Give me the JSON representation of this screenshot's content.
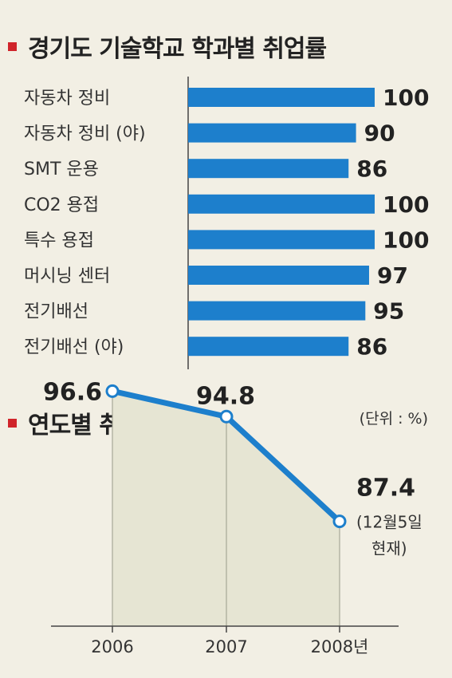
{
  "colors": {
    "marker": "#d0242a",
    "bar": "#1d7fcc",
    "line": "#1d7fcc",
    "area": "#e6e5d3",
    "axis": "#444444"
  },
  "section1": {
    "title": "경기도 기술학교 학과별 취업률"
  },
  "section2": {
    "title": "연도별 취업률",
    "unit": "(단위 : %)"
  },
  "chart_data": [
    {
      "type": "bar",
      "orientation": "horizontal",
      "title": "경기도 기술학교 학과별 취업률",
      "categories": [
        "자동차 정비",
        "자동차 정비 (야)",
        "SMT 운용",
        "CO2 용접",
        "특수 용접",
        "머시닝 센터",
        "전기배선",
        "전기배선 (야)"
      ],
      "values": [
        100,
        90,
        86,
        100,
        100,
        97,
        95,
        86
      ],
      "xlim": [
        0,
        100
      ],
      "grid": false
    },
    {
      "type": "line",
      "title": "연도별 취업률",
      "unit": "(단위 : %)",
      "x": [
        "2006",
        "2007",
        "2008년"
      ],
      "values": [
        96.6,
        94.8,
        87.4
      ],
      "value_labels": [
        "96.6",
        "94.8",
        "87.4"
      ],
      "annotation": [
        "(12월5일",
        "현재)"
      ],
      "ylim": [
        80,
        100
      ],
      "grid": false
    }
  ]
}
